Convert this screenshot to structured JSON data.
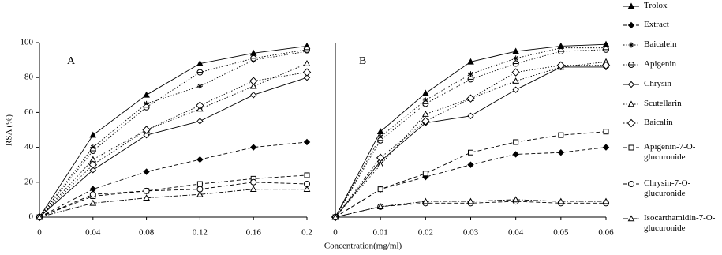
{
  "chart_data": [
    {
      "type": "line",
      "panel_label": "A",
      "ylabel": "RSA (%)",
      "xlabel": "Concentration(mg/ml)",
      "x": [
        0,
        0.04,
        0.08,
        0.12,
        0.16,
        0.2
      ],
      "xlim": [
        0,
        0.2
      ],
      "xticks": [
        0,
        0.04,
        0.08,
        0.12,
        0.16,
        0.2
      ],
      "ylim": [
        0,
        100
      ],
      "yticks": [
        0,
        20,
        40,
        60,
        80,
        100
      ],
      "series": [
        {
          "name": "Trolox",
          "color": "#000000",
          "marker": "triangle-filled",
          "dash": "solid",
          "values": [
            0,
            47,
            70,
            88,
            94,
            98
          ]
        },
        {
          "name": "Extract",
          "color": "#000000",
          "marker": "diamond-filled",
          "dash": "dash",
          "values": [
            0,
            16,
            26,
            33,
            40,
            43
          ]
        },
        {
          "name": "Baicalein",
          "color": "#000000",
          "marker": "asterisk",
          "dash": "dot",
          "values": [
            0,
            40,
            65,
            75,
            90,
            95
          ]
        },
        {
          "name": "Apigenin",
          "color": "#000000",
          "marker": "circle-cross",
          "dash": "dot",
          "values": [
            0,
            38,
            63,
            83,
            91,
            96
          ]
        },
        {
          "name": "Chrysin",
          "color": "#000000",
          "marker": "diamond",
          "dash": "solid",
          "values": [
            0,
            27,
            47,
            55,
            70,
            80
          ]
        },
        {
          "name": "Scutellarin",
          "color": "#000000",
          "marker": "triangle",
          "dash": "dot",
          "values": [
            0,
            33,
            50,
            62,
            75,
            88
          ]
        },
        {
          "name": "Baicalin",
          "color": "#000000",
          "marker": "diamond-large",
          "dash": "dot",
          "values": [
            0,
            30,
            50,
            64,
            78,
            83
          ]
        },
        {
          "name": "Apigenin-7-O-glucuronide",
          "color": "#000000",
          "marker": "square",
          "dash": "dash",
          "values": [
            0,
            12,
            15,
            19,
            22,
            24
          ]
        },
        {
          "name": "Chrysin-7-O-glucuronide",
          "color": "#000000",
          "marker": "circle",
          "dash": "dash",
          "values": [
            0,
            13,
            15,
            16,
            20,
            19
          ]
        },
        {
          "name": "Isocarthamidin-7-O-glucuronide",
          "color": "#000000",
          "marker": "triangle",
          "dash": "dashdot",
          "values": [
            0,
            8,
            11,
            13,
            16,
            16
          ]
        }
      ]
    },
    {
      "type": "line",
      "panel_label": "B",
      "x": [
        0,
        0.01,
        0.02,
        0.03,
        0.04,
        0.05,
        0.06
      ],
      "xlim": [
        0,
        0.06
      ],
      "xticks": [
        0,
        0.01,
        0.02,
        0.03,
        0.04,
        0.05,
        0.06
      ],
      "ylim": [
        0,
        100
      ],
      "series": [
        {
          "values": [
            0,
            49,
            71,
            89,
            95,
            98,
            99
          ]
        },
        {
          "values": [
            0,
            16,
            23,
            30,
            36,
            37,
            40
          ]
        },
        {
          "values": [
            0,
            46,
            67,
            82,
            91,
            97,
            97
          ]
        },
        {
          "values": [
            0,
            44,
            65,
            79,
            88,
            95,
            96
          ]
        },
        {
          "values": [
            0,
            32,
            54,
            58,
            73,
            86,
            86
          ]
        },
        {
          "values": [
            0,
            30,
            59,
            68,
            78,
            86,
            89
          ]
        },
        {
          "values": [
            0,
            34,
            55,
            68,
            83,
            87,
            87
          ]
        },
        {
          "values": [
            0,
            16,
            25,
            37,
            43,
            47,
            49
          ]
        },
        {
          "values": [
            0,
            6,
            8,
            8,
            9,
            8,
            8
          ]
        },
        {
          "values": [
            0,
            6,
            9,
            9,
            10,
            9,
            9
          ]
        }
      ]
    }
  ]
}
